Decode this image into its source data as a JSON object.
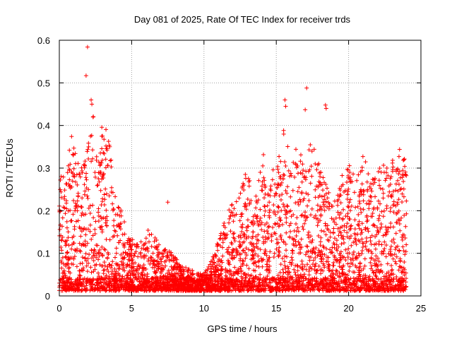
{
  "chart_data": {
    "type": "scatter",
    "title": "Day 081 of 2025, Rate Of TEC Index for receiver trds",
    "xlabel": "GPS time / hours",
    "ylabel": "ROTI / TECUs",
    "xlim": [
      0,
      25
    ],
    "ylim": [
      0,
      0.6
    ],
    "xticks": [
      "0",
      "5",
      "10",
      "15",
      "20",
      "25"
    ],
    "yticks": [
      "0",
      "0.1",
      "0.2",
      "0.3",
      "0.4",
      "0.5",
      "0.6"
    ],
    "grid": true,
    "legend": "none",
    "marker": "+",
    "color": "#ff0000",
    "envelope": [
      [
        0.0,
        0.3
      ],
      [
        0.5,
        0.27
      ],
      [
        0.8,
        0.39
      ],
      [
        1.2,
        0.34
      ],
      [
        1.6,
        0.3
      ],
      [
        2.0,
        0.36
      ],
      [
        2.3,
        0.45
      ],
      [
        2.7,
        0.32
      ],
      [
        3.0,
        0.42
      ],
      [
        3.4,
        0.38
      ],
      [
        3.8,
        0.26
      ],
      [
        4.3,
        0.2
      ],
      [
        4.8,
        0.14
      ],
      [
        5.5,
        0.12
      ],
      [
        6.2,
        0.16
      ],
      [
        7.0,
        0.12
      ],
      [
        7.8,
        0.1
      ],
      [
        8.5,
        0.07
      ],
      [
        9.2,
        0.06
      ],
      [
        10.0,
        0.05
      ],
      [
        10.7,
        0.1
      ],
      [
        11.3,
        0.17
      ],
      [
        11.8,
        0.21
      ],
      [
        12.4,
        0.24
      ],
      [
        13.0,
        0.3
      ],
      [
        13.5,
        0.22
      ],
      [
        14.0,
        0.35
      ],
      [
        14.5,
        0.27
      ],
      [
        15.0,
        0.33
      ],
      [
        15.5,
        0.4
      ],
      [
        16.0,
        0.33
      ],
      [
        16.5,
        0.35
      ],
      [
        17.0,
        0.32
      ],
      [
        17.5,
        0.38
      ],
      [
        18.0,
        0.3
      ],
      [
        18.5,
        0.26
      ],
      [
        19.0,
        0.22
      ],
      [
        19.5,
        0.28
      ],
      [
        20.0,
        0.31
      ],
      [
        20.5,
        0.28
      ],
      [
        21.0,
        0.35
      ],
      [
        21.5,
        0.27
      ],
      [
        22.0,
        0.29
      ],
      [
        22.5,
        0.33
      ],
      [
        23.0,
        0.32
      ],
      [
        23.5,
        0.36
      ],
      [
        24.0,
        0.31
      ]
    ],
    "outliers": [
      [
        1.85,
        0.517
      ],
      [
        1.95,
        0.584
      ],
      [
        2.2,
        0.46
      ],
      [
        2.25,
        0.45
      ],
      [
        7.5,
        0.22
      ],
      [
        17.1,
        0.488
      ],
      [
        17.0,
        0.437
      ],
      [
        18.4,
        0.448
      ],
      [
        18.45,
        0.44
      ],
      [
        15.6,
        0.46
      ],
      [
        15.65,
        0.445
      ]
    ]
  }
}
